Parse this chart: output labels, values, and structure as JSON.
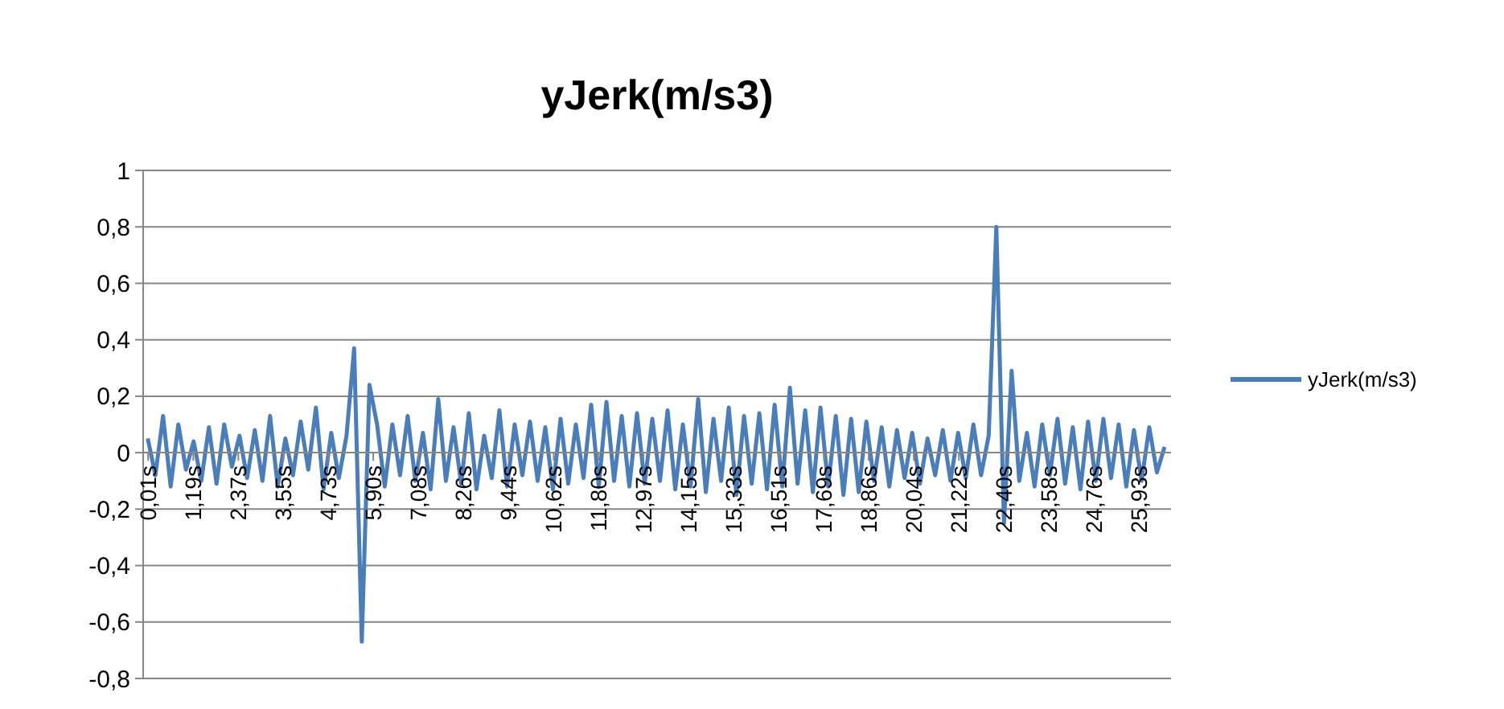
{
  "chart_data": {
    "type": "line",
    "title": "yJerk(m/s3)",
    "x": [
      0,
      0.2,
      0.4,
      0.6,
      0.8,
      1,
      1.2,
      1.4,
      1.6,
      1.8,
      2,
      2.2,
      2.4,
      2.6,
      2.8,
      3,
      3.2,
      3.4,
      3.6,
      3.8,
      4,
      4.2,
      4.4,
      4.6,
      4.8,
      5,
      5.2,
      5.4,
      5.6,
      5.8,
      6,
      6.2,
      6.4,
      6.6,
      6.8,
      7,
      7.2,
      7.4,
      7.6,
      7.8,
      8,
      8.2,
      8.4,
      8.6,
      8.8,
      9,
      9.2,
      9.4,
      9.6,
      9.8,
      10,
      10.2,
      10.4,
      10.6,
      10.8,
      11,
      11.2,
      11.4,
      11.6,
      11.8,
      12,
      12.2,
      12.4,
      12.6,
      12.8,
      13,
      13.2,
      13.4,
      13.6,
      13.8,
      14,
      14.2,
      14.4,
      14.6,
      14.8,
      15,
      15.2,
      15.4,
      15.6,
      15.8,
      16,
      16.2,
      16.4,
      16.6,
      16.8,
      17,
      17.2,
      17.4,
      17.6,
      17.8,
      18,
      18.2,
      18.4,
      18.6,
      18.8,
      19,
      19.2,
      19.4,
      19.6,
      19.8,
      20,
      20.2,
      20.4,
      20.6,
      20.8,
      21,
      21.2,
      21.4,
      21.6,
      21.8,
      22,
      22.2,
      22.4,
      22.6,
      22.8,
      23,
      23.2,
      23.4,
      23.6,
      23.8,
      24,
      24.2,
      24.4,
      24.6,
      24.8,
      25,
      25.2,
      25.4,
      25.6,
      25.8,
      26,
      26.2,
      26.4,
      26.6
    ],
    "series": [
      {
        "name": "yJerk(m/s3)",
        "color": "#4a7ebb",
        "values": [
          0.05,
          -0.08,
          0.13,
          -0.12,
          0.1,
          -0.06,
          0.04,
          -0.1,
          0.09,
          -0.11,
          0.1,
          -0.05,
          0.06,
          -0.09,
          0.08,
          -0.1,
          0.13,
          -0.12,
          0.05,
          -0.08,
          0.11,
          -0.06,
          0.16,
          -0.13,
          0.07,
          -0.09,
          0.06,
          0.37,
          -0.67,
          0.24,
          0.1,
          -0.12,
          0.1,
          -0.08,
          0.13,
          -0.1,
          0.07,
          -0.13,
          0.19,
          -0.1,
          0.09,
          -0.11,
          0.14,
          -0.13,
          0.06,
          -0.09,
          0.15,
          -0.12,
          0.1,
          -0.08,
          0.11,
          -0.1,
          0.09,
          -0.13,
          0.12,
          -0.11,
          0.1,
          -0.09,
          0.17,
          -0.12,
          0.18,
          -0.1,
          0.13,
          -0.12,
          0.14,
          -0.11,
          0.12,
          -0.1,
          0.15,
          -0.13,
          0.1,
          -0.12,
          0.19,
          -0.14,
          0.12,
          -0.1,
          0.16,
          -0.15,
          0.13,
          -0.11,
          0.14,
          -0.13,
          0.17,
          -0.12,
          0.23,
          -0.11,
          0.15,
          -0.14,
          0.16,
          -0.12,
          0.13,
          -0.15,
          0.12,
          -0.14,
          0.11,
          -0.1,
          0.09,
          -0.12,
          0.08,
          -0.09,
          0.07,
          -0.11,
          0.05,
          -0.08,
          0.08,
          -0.1,
          0.07,
          -0.09,
          0.1,
          -0.08,
          0.06,
          0.8,
          -0.25,
          0.29,
          -0.1,
          0.07,
          -0.12,
          0.1,
          -0.08,
          0.12,
          -0.11,
          0.09,
          -0.13,
          0.11,
          -0.1,
          0.12,
          -0.09,
          0.1,
          -0.12,
          0.08,
          -0.1,
          0.09,
          -0.07,
          0.02
        ]
      }
    ],
    "xlim": [
      -0.12,
      26.77
    ],
    "xticks": [
      {
        "value": 0.01,
        "label": "0,01s"
      },
      {
        "value": 1.19,
        "label": "1,19s"
      },
      {
        "value": 2.37,
        "label": "2,37s"
      },
      {
        "value": 3.55,
        "label": "3,55s"
      },
      {
        "value": 4.73,
        "label": "4,73s"
      },
      {
        "value": 5.9,
        "label": "5,90s"
      },
      {
        "value": 7.08,
        "label": "7,08s"
      },
      {
        "value": 8.26,
        "label": "8,26s"
      },
      {
        "value": 9.44,
        "label": "9,44s"
      },
      {
        "value": 10.62,
        "label": "10,62s"
      },
      {
        "value": 11.8,
        "label": "11,80s"
      },
      {
        "value": 12.97,
        "label": "12,97s"
      },
      {
        "value": 14.15,
        "label": "14,15s"
      },
      {
        "value": 15.33,
        "label": "15,33s"
      },
      {
        "value": 16.51,
        "label": "16,51s"
      },
      {
        "value": 17.69,
        "label": "17,69s"
      },
      {
        "value": 18.86,
        "label": "18,86s"
      },
      {
        "value": 20.04,
        "label": "20,04s"
      },
      {
        "value": 21.22,
        "label": "21,22s"
      },
      {
        "value": 22.4,
        "label": "22,40s"
      },
      {
        "value": 23.58,
        "label": "23,58s"
      },
      {
        "value": 24.76,
        "label": "24,76s"
      },
      {
        "value": 25.93,
        "label": "25,93s"
      }
    ],
    "ylim": [
      -0.8,
      1
    ],
    "yticks": [
      {
        "value": -0.8,
        "label": "-0,8"
      },
      {
        "value": -0.6,
        "label": "-0,6"
      },
      {
        "value": -0.4,
        "label": "-0,4"
      },
      {
        "value": -0.2,
        "label": "-0,2"
      },
      0,
      {
        "value": 0.2,
        "label": "0,2"
      },
      {
        "value": 0.4,
        "label": "0,4"
      },
      {
        "value": 0.6,
        "label": "0,6"
      },
      {
        "value": 0.8,
        "label": "0,8"
      },
      1
    ],
    "grid": "y",
    "legend": "right",
    "marker": "none",
    "line_style": "solid"
  }
}
